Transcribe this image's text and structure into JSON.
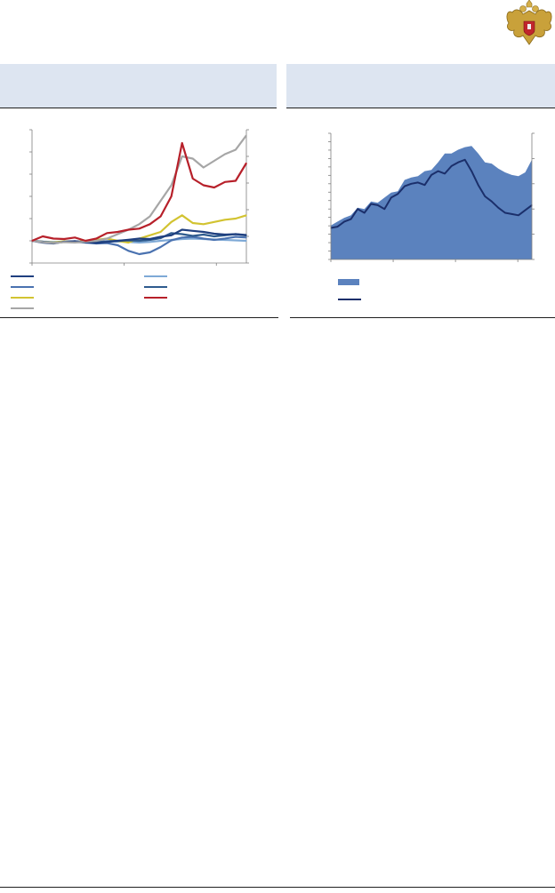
{
  "header": {
    "left_title": "",
    "right_title": ""
  },
  "colors": {
    "dark_navy": "#1f3f7f",
    "mid_blue": "#4a72b0",
    "light_blue": "#7ea9d6",
    "teal_blue": "#2e5b8e",
    "gold": "#d2c331",
    "red": "#b7202a",
    "gray": "#a6a6a6",
    "area_blue": "#5b82be",
    "line_navy": "#1b2f6b",
    "header_bg": "#dde5f1"
  },
  "chart_data": [
    {
      "type": "line",
      "title": "",
      "xlabel": "",
      "ylabel": "",
      "grid": false,
      "legend_position": "bottom",
      "x_index": [
        0,
        5,
        10,
        15,
        20,
        25,
        30,
        35,
        40,
        45,
        50,
        55,
        60,
        65,
        70,
        75,
        80,
        85,
        90,
        95,
        100
      ],
      "ylim": [
        0,
        600
      ],
      "series": [
        {
          "name": "",
          "color": "#1f3f7f",
          "values": [
            100,
            92,
            88,
            96,
            98,
            94,
            90,
            95,
            100,
            105,
            110,
            108,
            118,
            125,
            150,
            145,
            140,
            132,
            128,
            130,
            126
          ]
        },
        {
          "name": "",
          "color": "#4a72b0",
          "values": [
            100,
            95,
            92,
            97,
            95,
            92,
            88,
            90,
            80,
            55,
            40,
            48,
            72,
            102,
            115,
            118,
            110,
            104,
            110,
            118,
            115
          ]
        },
        {
          "name": "",
          "color": "#d2c331",
          "values": [
            100,
            96,
            92,
            98,
            95,
            100,
            105,
            110,
            100,
            92,
            110,
            125,
            140,
            185,
            215,
            180,
            175,
            185,
            195,
            200,
            215
          ]
        },
        {
          "name": "",
          "color": "#a6a6a6",
          "values": [
            100,
            94,
            90,
            94,
            92,
            96,
            100,
            110,
            130,
            150,
            175,
            210,
            280,
            350,
            480,
            470,
            430,
            460,
            490,
            510,
            575
          ]
        },
        {
          "name": "",
          "color": "#7ea9d6",
          "values": [
            100,
            97,
            95,
            97,
            96,
            94,
            95,
            96,
            97,
            95,
            92,
            95,
            100,
            104,
            108,
            110,
            108,
            106,
            104,
            102,
            100
          ]
        },
        {
          "name": "",
          "color": "#2e5b8e",
          "values": [
            100,
            96,
            90,
            95,
            98,
            92,
            95,
            98,
            100,
            102,
            100,
            104,
            112,
            135,
            130,
            122,
            128,
            120,
            125,
            130,
            124
          ]
        },
        {
          "name": "",
          "color": "#b7202a",
          "values": [
            100,
            120,
            110,
            108,
            115,
            100,
            110,
            135,
            140,
            150,
            155,
            175,
            210,
            300,
            540,
            380,
            350,
            340,
            365,
            370,
            450
          ]
        }
      ]
    },
    {
      "type": "area",
      "title": "",
      "xlabel": "",
      "ylabel": "",
      "grid": false,
      "legend_position": "bottom",
      "x_index": [
        0,
        2,
        4,
        6,
        8,
        10,
        12,
        14,
        16,
        18,
        20,
        22,
        24,
        26,
        28,
        30,
        32,
        34,
        36,
        38,
        40,
        42,
        44,
        46,
        48,
        50,
        52,
        54,
        56,
        58,
        60
      ],
      "ylim": [
        0,
        100
      ],
      "series": [
        {
          "name": "",
          "kind": "area",
          "color": "#5b82be",
          "values": [
            27,
            30,
            33,
            35,
            41,
            40,
            46,
            45,
            49,
            53,
            54,
            63,
            65,
            66,
            70,
            71,
            77,
            84,
            84,
            87,
            89,
            90,
            84,
            77,
            76,
            72,
            69,
            67,
            66,
            69,
            79
          ]
        },
        {
          "name": "",
          "kind": "line",
          "color": "#1b2f6b",
          "values": [
            25,
            26,
            30,
            32,
            40,
            37,
            44,
            43,
            40,
            49,
            52,
            58,
            60,
            61,
            59,
            67,
            70,
            68,
            74,
            77,
            79,
            70,
            59,
            50,
            46,
            41,
            37,
            36,
            35,
            39,
            43
          ]
        }
      ]
    }
  ]
}
